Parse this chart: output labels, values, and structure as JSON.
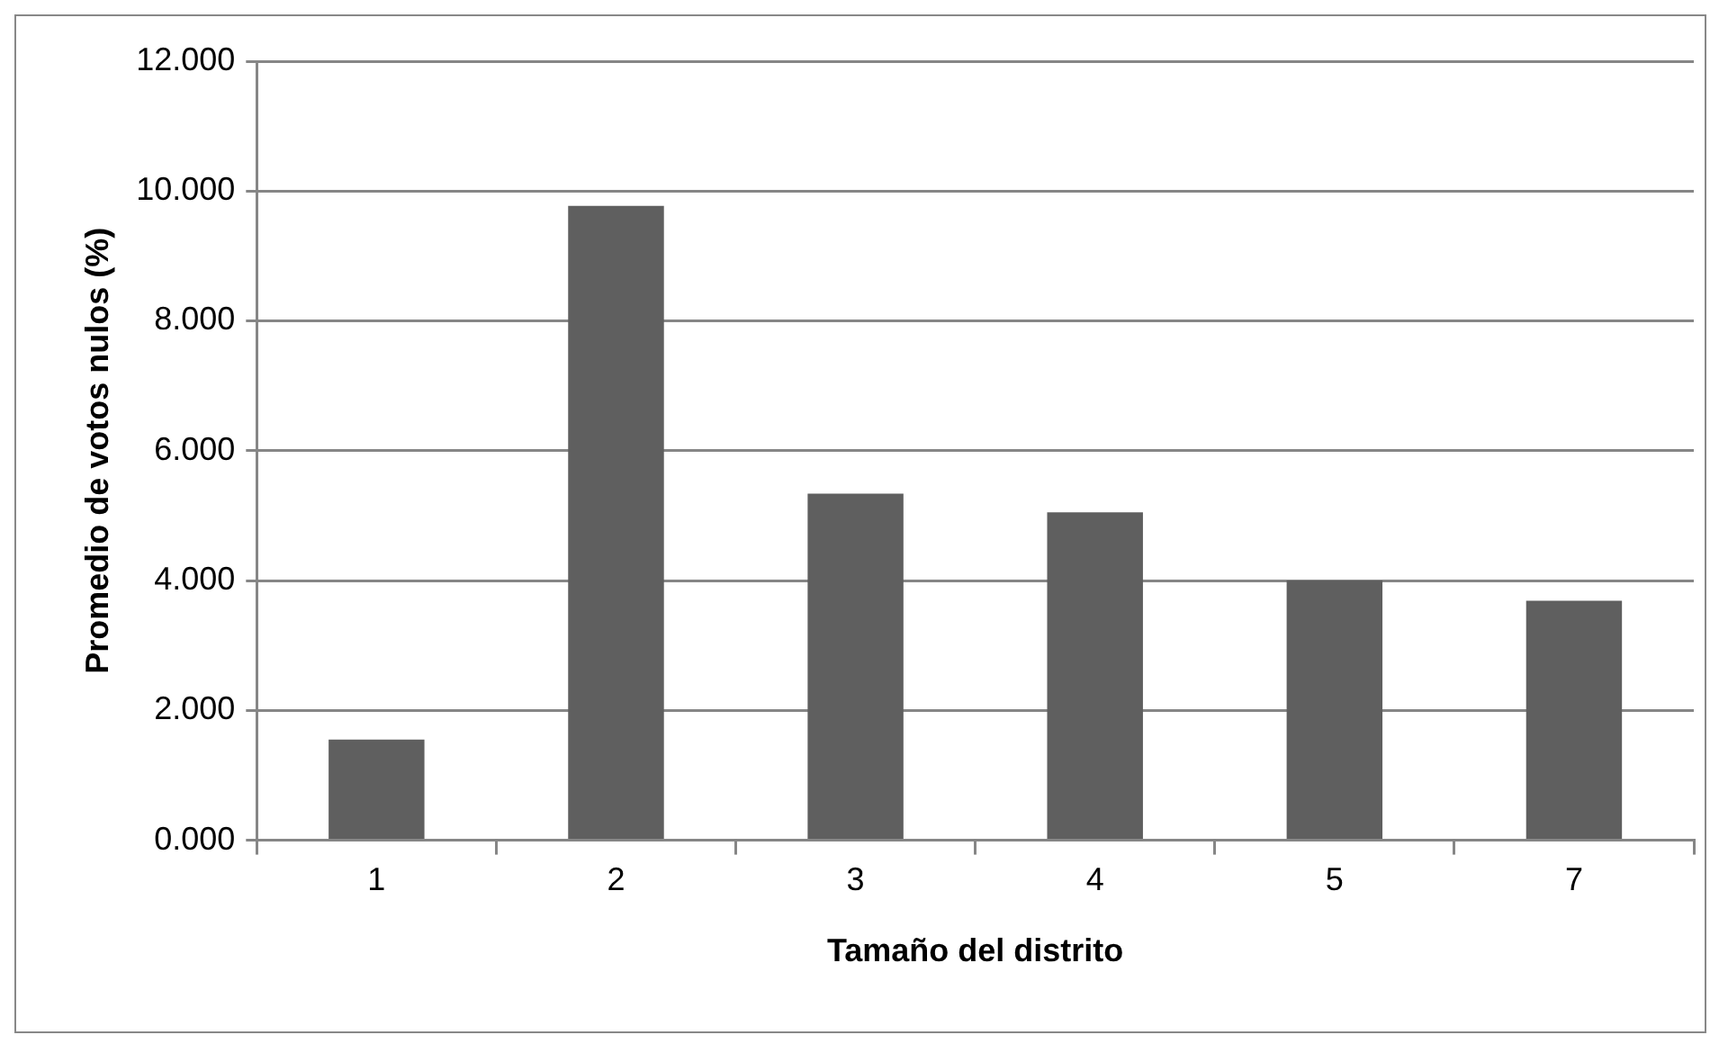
{
  "chart_data": {
    "type": "bar",
    "xlabel": "Tamaño del distrito",
    "ylabel": "Promedio de votos nulos (%)",
    "categories": [
      "1",
      "2",
      "3",
      "4",
      "5",
      "7"
    ],
    "values": [
      1.55,
      9.77,
      5.34,
      5.05,
      4.0,
      3.69
    ],
    "color": "#5f5f5f",
    "ylim": [
      0,
      12
    ],
    "yticks": [
      {
        "value": 0,
        "label": "0.000"
      },
      {
        "value": 2,
        "label": "2.000"
      },
      {
        "value": 4,
        "label": "4.000"
      },
      {
        "value": 6,
        "label": "6.000"
      },
      {
        "value": 8,
        "label": "8.000"
      },
      {
        "value": 10,
        "label": "10.000"
      },
      {
        "value": 12,
        "label": "12.000"
      }
    ],
    "grid": "y",
    "legend": false
  }
}
